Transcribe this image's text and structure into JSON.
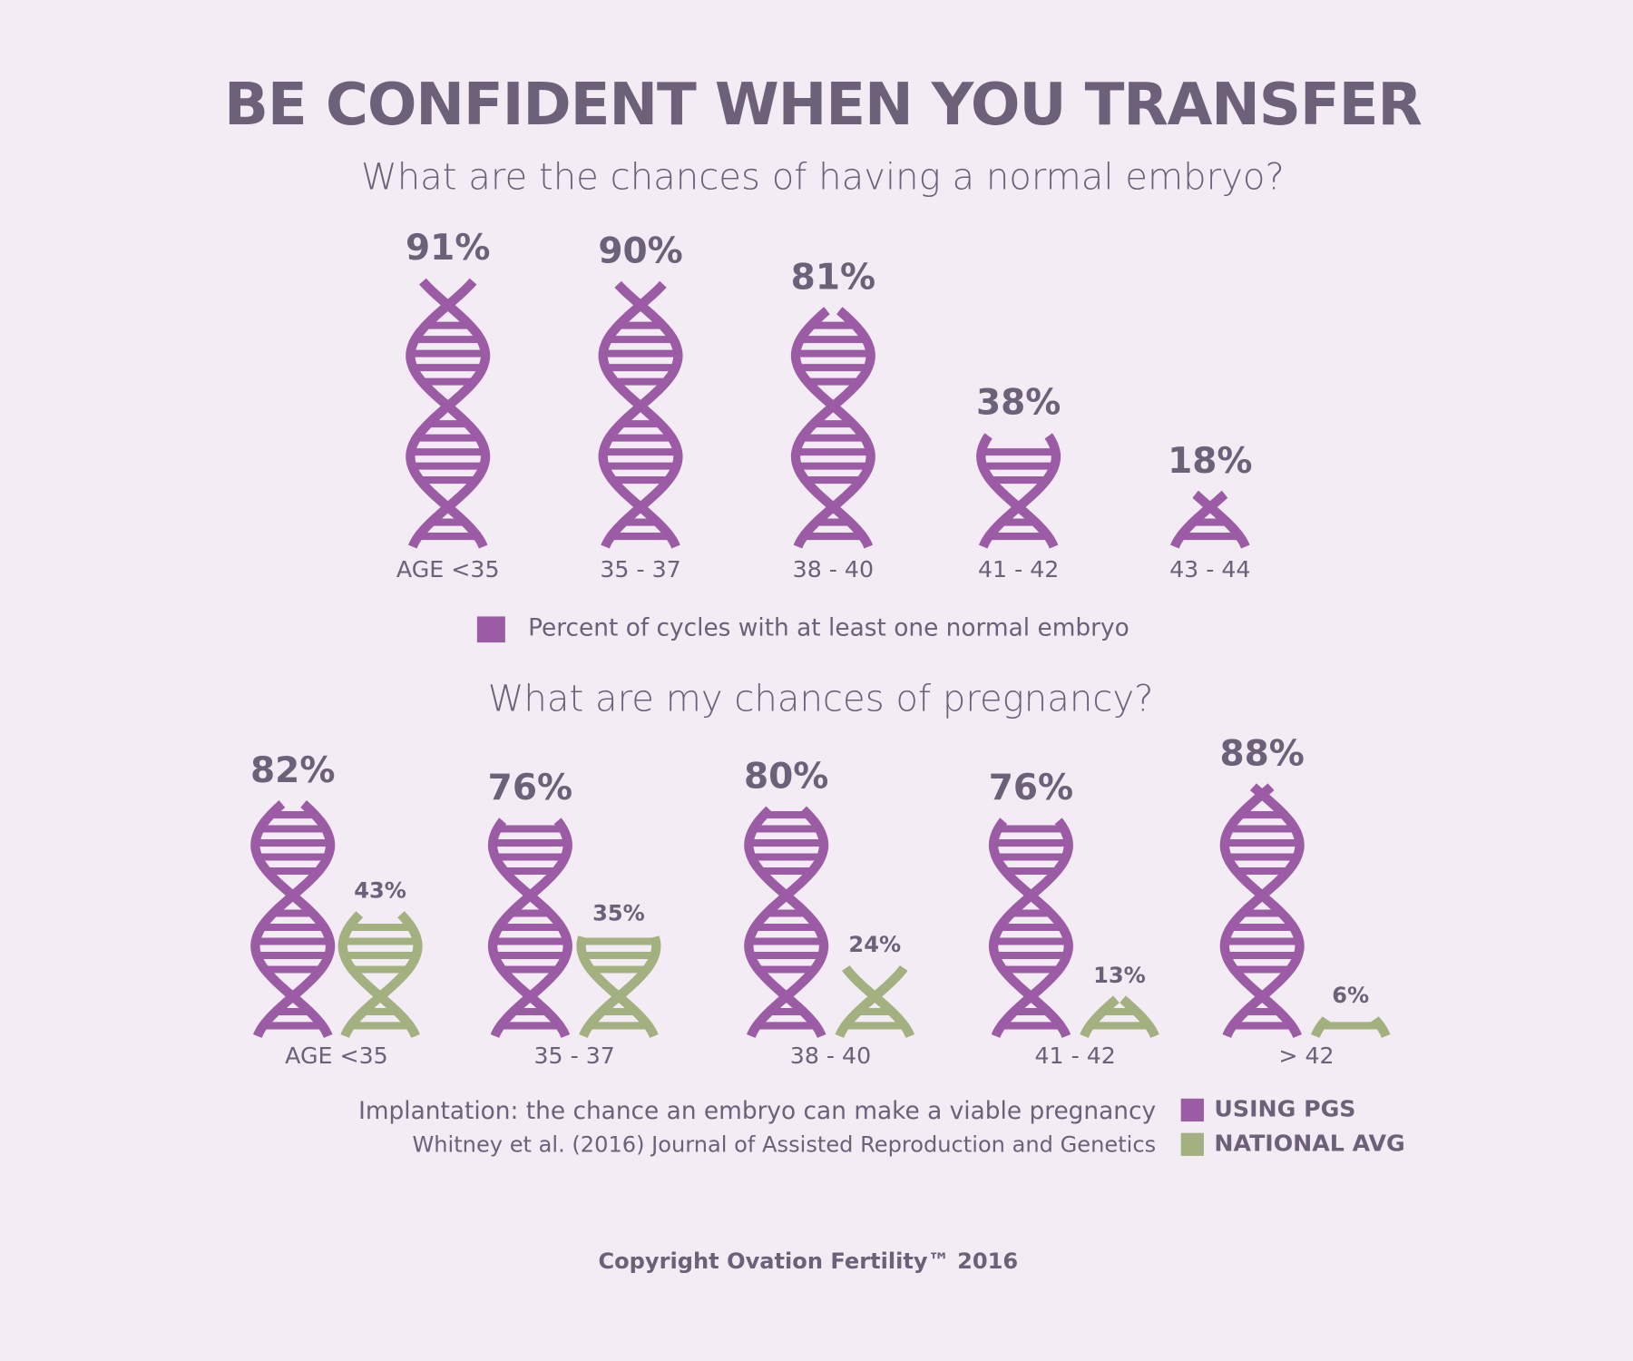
{
  "title": "BE CONFIDENT WHEN YOU TRANSFER",
  "copyright": "Copyright Ovation Fertility™ 2016",
  "chart_data": [
    {
      "type": "bar",
      "subtitle": "What are the chances of having a normal embryo?",
      "categories": [
        "AGE <35",
        "35 - 37",
        "38 - 40",
        "41 - 42",
        "43 - 44"
      ],
      "series": [
        {
          "name": "Percent of cycles with at least one normal embryo",
          "color": "#9b5ba5",
          "values": [
            91,
            90,
            81,
            38,
            18
          ],
          "value_labels": [
            "91%",
            "90%",
            "81%",
            "38%",
            "18%"
          ]
        }
      ]
    },
    {
      "type": "bar",
      "subtitle": "What are my chances of pregnancy?",
      "categories": [
        "AGE <35",
        "35 - 37",
        "38 - 40",
        "41 - 42",
        "> 42"
      ],
      "series": [
        {
          "name": "USING PGS",
          "color": "#9b5ba5",
          "values": [
            82,
            76,
            80,
            76,
            88
          ],
          "value_labels": [
            "82%",
            "76%",
            "80%",
            "76%",
            "88%"
          ]
        },
        {
          "name": "NATIONAL AVG",
          "color": "#a3b07f",
          "values": [
            43,
            35,
            24,
            13,
            6
          ],
          "value_labels": [
            "43%",
            "35%",
            "24%",
            "13%",
            "6%"
          ]
        }
      ],
      "notes": [
        "Implantation: the chance an embryo can make a viable pregnancy",
        "Whitney et al. (2016) Journal of Assisted Reproduction and Genetics"
      ]
    }
  ]
}
